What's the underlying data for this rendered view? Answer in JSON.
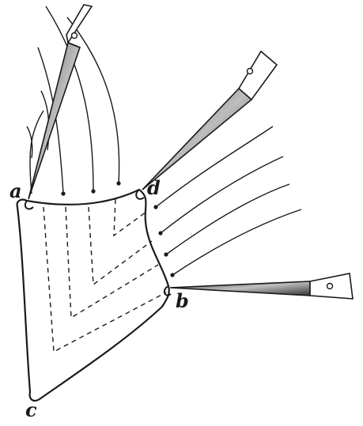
{
  "figure": {
    "labels": {
      "a": "a",
      "b": "b",
      "c": "c",
      "d": "d"
    },
    "ink_color": "#1a1a1a",
    "pin_shade_color": "#8a8a8a",
    "background_color": "#ffffff"
  }
}
